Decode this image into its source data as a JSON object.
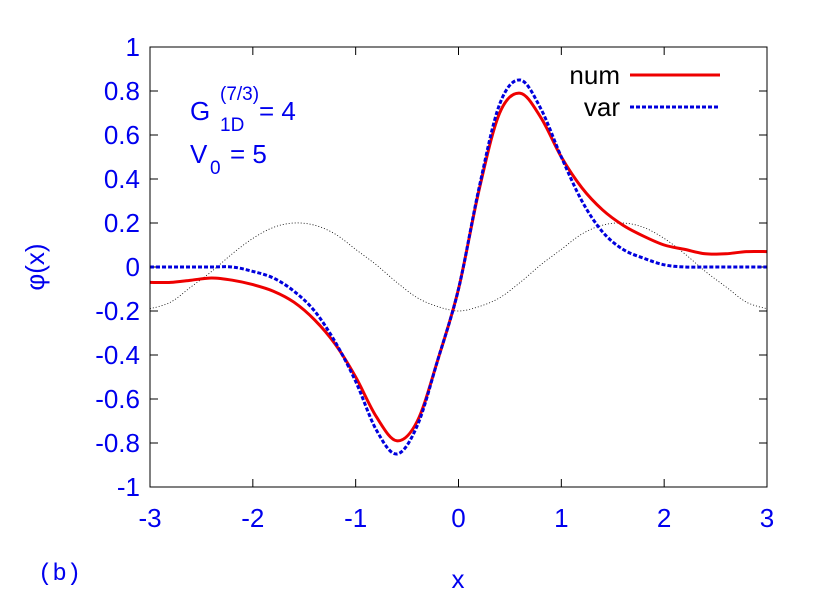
{
  "chart_data": {
    "type": "line",
    "x": [
      -3,
      -2.8,
      -2.6,
      -2.4,
      -2.2,
      -2,
      -1.8,
      -1.6,
      -1.4,
      -1.2,
      -1,
      -0.8,
      -0.6,
      -0.4,
      -0.2,
      0,
      0.2,
      0.4,
      0.6,
      0.8,
      1,
      1.2,
      1.4,
      1.6,
      1.8,
      2,
      2.2,
      2.4,
      2.6,
      2.8,
      3
    ],
    "series": [
      {
        "color": "#000000",
        "style": "dotted",
        "values": [
          -0.19,
          -0.16,
          -0.09,
          -0.02,
          0.06,
          0.13,
          0.18,
          0.2,
          0.19,
          0.15,
          0.08,
          0.01,
          -0.07,
          -0.14,
          -0.18,
          -0.2,
          -0.18,
          -0.14,
          -0.07,
          0.01,
          0.08,
          0.15,
          0.19,
          0.2,
          0.18,
          0.13,
          0.06,
          -0.02,
          -0.09,
          -0.16,
          -0.19
        ]
      },
      {
        "name": "num",
        "color": "#ee0000",
        "style": "solid",
        "values": [
          -0.07,
          -0.07,
          -0.06,
          -0.05,
          -0.06,
          -0.08,
          -0.11,
          -0.16,
          -0.24,
          -0.35,
          -0.5,
          -0.68,
          -0.79,
          -0.7,
          -0.42,
          -0.1,
          0.35,
          0.7,
          0.79,
          0.68,
          0.5,
          0.36,
          0.26,
          0.19,
          0.14,
          0.1,
          0.08,
          0.06,
          0.06,
          0.07,
          0.07
        ]
      },
      {
        "name": "var",
        "color": "#0000dd",
        "style": "dashed",
        "values": [
          0,
          0,
          0,
          0,
          0,
          -0.02,
          -0.05,
          -0.11,
          -0.2,
          -0.34,
          -0.52,
          -0.74,
          -0.85,
          -0.72,
          -0.42,
          -0.1,
          0.36,
          0.74,
          0.85,
          0.72,
          0.5,
          0.3,
          0.16,
          0.08,
          0.04,
          0.01,
          0,
          0,
          0,
          0,
          0
        ]
      }
    ],
    "xlim": [
      -3,
      3
    ],
    "xticks": [
      -3,
      -2,
      -1,
      0,
      1,
      2,
      3
    ],
    "ylim": [
      -1,
      1
    ],
    "yticks": [
      -1,
      -0.8,
      -0.6,
      -0.4,
      -0.2,
      0,
      0.2,
      0.4,
      0.6,
      0.8,
      1
    ],
    "xlabel": "x",
    "ylabel": "φ(x)",
    "legend": "top right",
    "grid": false,
    "annotations": [
      {
        "base": "G",
        "sup": "(7/3)",
        "sub": "1D",
        "tail": "= 4"
      },
      {
        "base": "V",
        "sub": "0",
        "tail": "= 5"
      }
    ],
    "panel_label": "(b)"
  }
}
